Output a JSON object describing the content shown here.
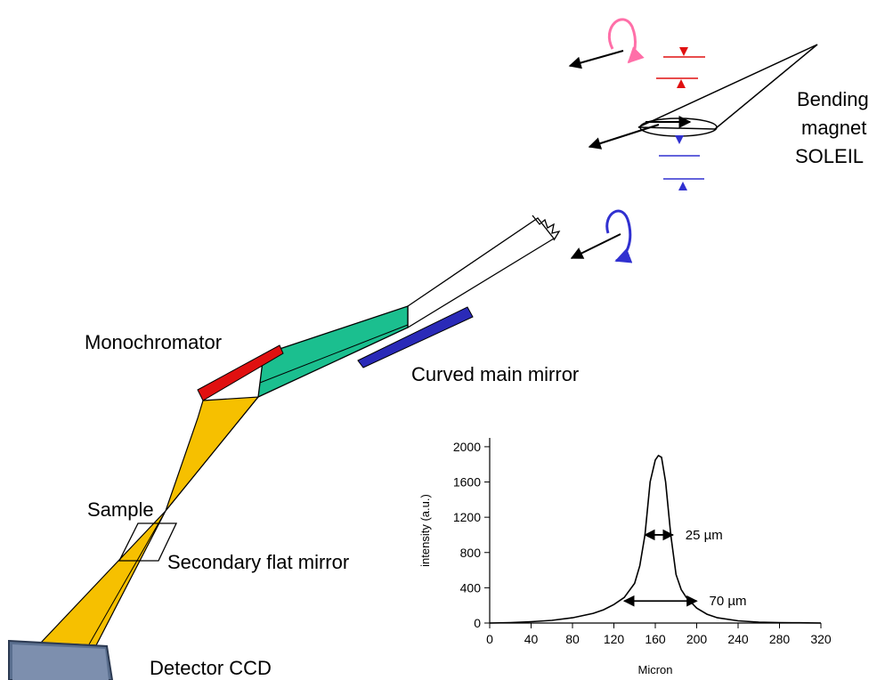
{
  "labels": {
    "bending_magnet_line1": "Bending",
    "bending_magnet_line2": "magnet",
    "bending_magnet_line3": "SOLEIL",
    "monochromator": "Monochromator",
    "curved_main_mirror": "Curved main mirror",
    "sample": "Sample",
    "secondary_flat_mirror": "Secondary flat mirror",
    "detector": "Detector CCD"
  },
  "colors": {
    "beam_green": "#1bbf8f",
    "beam_yellow": "#f6c000",
    "monochromator_red": "#e01010",
    "mirror_blue": "#2a2ab8",
    "pink_rotation": "#ff6fa8",
    "blue_rotation": "#3030d0",
    "detector_face": "#5a6f8f"
  },
  "chart_data": {
    "type": "line",
    "title": "",
    "xlabel": "Micron",
    "ylabel": "intensity (a.u.)",
    "xlim": [
      0,
      320
    ],
    "ylim": [
      0,
      2100
    ],
    "xticks": [
      "0",
      "40",
      "80",
      "120",
      "160",
      "200",
      "240",
      "280",
      "320"
    ],
    "yticks": [
      "0",
      "400",
      "800",
      "1200",
      "1600",
      "2000"
    ],
    "x": [
      0,
      20,
      40,
      60,
      80,
      100,
      110,
      120,
      130,
      140,
      145,
      150,
      155,
      160,
      163,
      166,
      170,
      175,
      180,
      185,
      190,
      200,
      210,
      220,
      240,
      260,
      280,
      300,
      320
    ],
    "y": [
      0,
      5,
      15,
      30,
      60,
      110,
      150,
      210,
      290,
      450,
      650,
      1000,
      1600,
      1850,
      1900,
      1880,
      1600,
      1000,
      550,
      380,
      290,
      170,
      100,
      60,
      25,
      10,
      5,
      3,
      0
    ],
    "annotations": [
      {
        "text": "25 µm",
        "x_from": 150,
        "x_to": 177,
        "y": 1000
      },
      {
        "text": "70 µm",
        "x_from": 130,
        "x_to": 200,
        "y": 250
      }
    ]
  }
}
